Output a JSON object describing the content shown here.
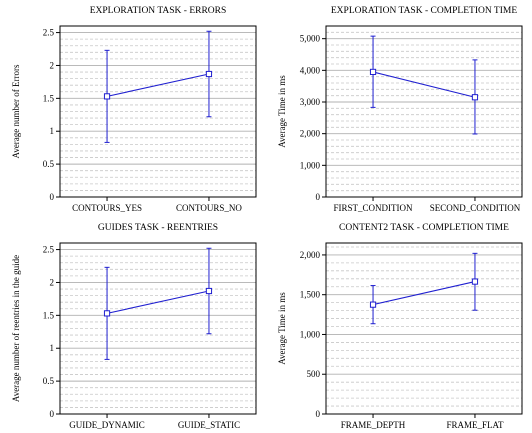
{
  "chart_data": [
    {
      "type": "line",
      "title": "EXPLORATION TASK - ERRORS",
      "xlabel": "",
      "ylabel": "Average number of Errors",
      "categories": [
        "CONTOURS_YES",
        "CONTOURS_NO"
      ],
      "series": [
        {
          "values": [
            1.53,
            1.87
          ],
          "err_low": [
            0.83,
            1.22
          ],
          "err_high": [
            2.23,
            2.52
          ]
        }
      ],
      "ylim": [
        0,
        2.6
      ],
      "yticks": [
        0,
        0.5,
        1,
        1.5,
        2,
        2.5
      ],
      "ytick_labels": [
        "0",
        "0.5",
        "1",
        "1.5",
        "2",
        "2.5"
      ],
      "grid": true
    },
    {
      "type": "line",
      "title": "EXPLORATION TASK - COMPLETION TIME",
      "xlabel": "",
      "ylabel": "Average Time in ms",
      "categories": [
        "FIRST_CONDITION",
        "SECOND_CONDITION"
      ],
      "series": [
        {
          "values": [
            3950,
            3150
          ],
          "err_low": [
            2830,
            1990
          ],
          "err_high": [
            5080,
            4330
          ]
        }
      ],
      "ylim": [
        0,
        5400
      ],
      "yticks": [
        0,
        1000,
        2000,
        3000,
        4000,
        5000
      ],
      "ytick_labels": [
        "0",
        "1,000",
        "2,000",
        "3,000",
        "4,000",
        "5,000"
      ],
      "grid": true
    },
    {
      "type": "line",
      "title": "GUIDES TASK - REENTRIES",
      "xlabel": "",
      "ylabel": "Average number of reentries in the guide",
      "categories": [
        "GUIDE_DYNAMIC",
        "GUIDE_STATIC"
      ],
      "series": [
        {
          "values": [
            1.53,
            1.87
          ],
          "err_low": [
            0.83,
            1.22
          ],
          "err_high": [
            2.23,
            2.52
          ]
        }
      ],
      "ylim": [
        0,
        2.6
      ],
      "yticks": [
        0,
        0.5,
        1,
        1.5,
        2,
        2.5
      ],
      "ytick_labels": [
        "0",
        "0.5",
        "1",
        "1.5",
        "2",
        "2.5"
      ],
      "grid": true
    },
    {
      "type": "line",
      "title": "CONTENT2 TASK - COMPLETION TIME",
      "xlabel": "",
      "ylabel": "Average Time in ms",
      "categories": [
        "FRAME_DEPTH",
        "FRAME_FLAT"
      ],
      "series": [
        {
          "values": [
            1375,
            1665
          ],
          "err_low": [
            1135,
            1305
          ],
          "err_high": [
            1615,
            2020
          ]
        }
      ],
      "ylim": [
        0,
        2150
      ],
      "yticks": [
        0,
        500,
        1000,
        1500,
        2000
      ],
      "ytick_labels": [
        "0",
        "500",
        "1,000",
        "1,500",
        "2,000"
      ],
      "grid": true
    }
  ],
  "style": {
    "series_color": "#1f1fd0",
    "grid_major_color": "#b0b0b0",
    "grid_minor_color": "#c8c8c8",
    "axis_color": "#000000"
  }
}
